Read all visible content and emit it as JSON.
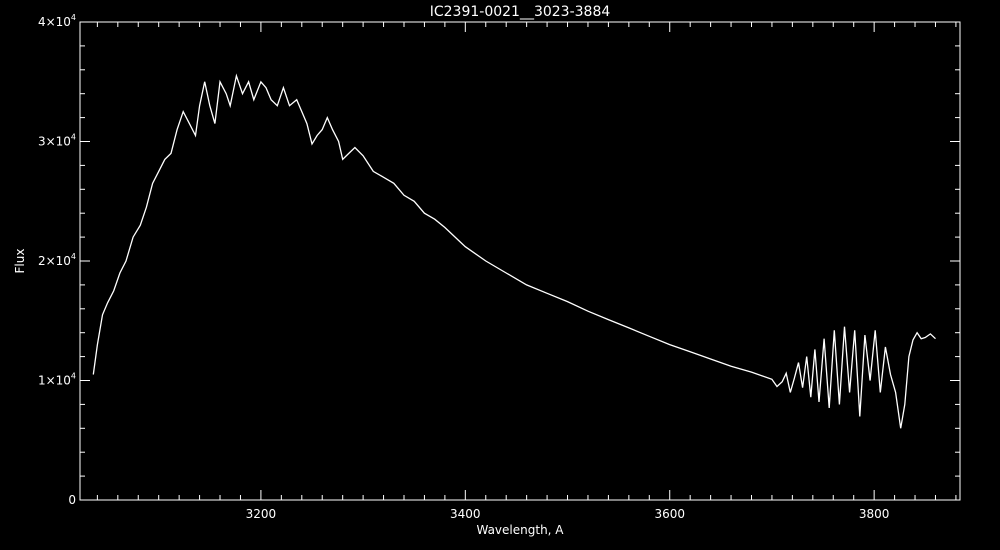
{
  "chart_data": {
    "type": "line",
    "title": "IC2391-0021__3023-3884",
    "xlabel": "Wavelength, A",
    "ylabel": "Flux",
    "xlim": [
      3023,
      3884
    ],
    "ylim": [
      0,
      40000
    ],
    "x_ticks": [
      3200,
      3400,
      3600,
      3800
    ],
    "x_tick_labels": [
      "3200",
      "3400",
      "3600",
      "3800"
    ],
    "y_ticks": [
      0,
      10000,
      20000,
      30000,
      40000
    ],
    "y_tick_labels": [
      {
        "base": "0",
        "exp": ""
      },
      {
        "base": "1×10",
        "exp": "4"
      },
      {
        "base": "2×10",
        "exp": "4"
      },
      {
        "base": "3×10",
        "exp": "4"
      },
      {
        "base": "4×10",
        "exp": "4"
      }
    ],
    "grid": false,
    "colors": {
      "background": "#000000",
      "foreground": "#ffffff"
    },
    "series": [
      {
        "x": [
          3036,
          3040,
          3045,
          3050,
          3056,
          3062,
          3068,
          3075,
          3082,
          3088,
          3094,
          3100,
          3106,
          3112,
          3118,
          3124,
          3130,
          3136,
          3140,
          3145,
          3150,
          3155,
          3160,
          3166,
          3170,
          3176,
          3182,
          3188,
          3193,
          3200,
          3205,
          3210,
          3216,
          3222,
          3228,
          3235,
          3240,
          3245,
          3250,
          3255,
          3260,
          3265,
          3270,
          3276,
          3280,
          3286,
          3292,
          3300,
          3310,
          3320,
          3330,
          3340,
          3350,
          3360,
          3370,
          3380,
          3390,
          3400,
          3420,
          3440,
          3460,
          3480,
          3500,
          3520,
          3540,
          3560,
          3580,
          3600,
          3620,
          3640,
          3660,
          3680,
          3700,
          3705,
          3710,
          3714,
          3718,
          3722,
          3726,
          3730,
          3734,
          3738,
          3742,
          3746,
          3751,
          3756,
          3761,
          3766,
          3771,
          3776,
          3781,
          3786,
          3791,
          3796,
          3801,
          3806,
          3811,
          3816,
          3821,
          3826,
          3830,
          3834,
          3838,
          3842,
          3846,
          3850,
          3855,
          3860
        ],
        "y": [
          10500,
          13000,
          15500,
          16500,
          17500,
          19000,
          20000,
          22000,
          23000,
          24500,
          26500,
          27500,
          28500,
          29000,
          31000,
          32500,
          31500,
          30500,
          33000,
          35000,
          33000,
          31500,
          35000,
          34000,
          33000,
          35500,
          34000,
          35000,
          33500,
          35000,
          34500,
          33500,
          33000,
          34500,
          33000,
          33500,
          32500,
          31500,
          29800,
          30500,
          31000,
          32000,
          31000,
          30000,
          28500,
          29000,
          29500,
          28800,
          27500,
          27000,
          26500,
          25500,
          25000,
          24000,
          23500,
          22800,
          22000,
          21200,
          20000,
          19000,
          18000,
          17300,
          16600,
          15800,
          15100,
          14400,
          13700,
          13000,
          12400,
          11800,
          11200,
          10700,
          10100,
          9500,
          9900,
          10600,
          9000,
          10200,
          11500,
          9400,
          12000,
          8600,
          12600,
          8200,
          13500,
          7700,
          14200,
          8000,
          14500,
          9000,
          14200,
          7000,
          13800,
          10000,
          14200,
          9000,
          12800,
          10500,
          9000,
          6000,
          8000,
          12000,
          13400,
          14000,
          13500,
          13600,
          13900,
          13500
        ]
      }
    ]
  }
}
